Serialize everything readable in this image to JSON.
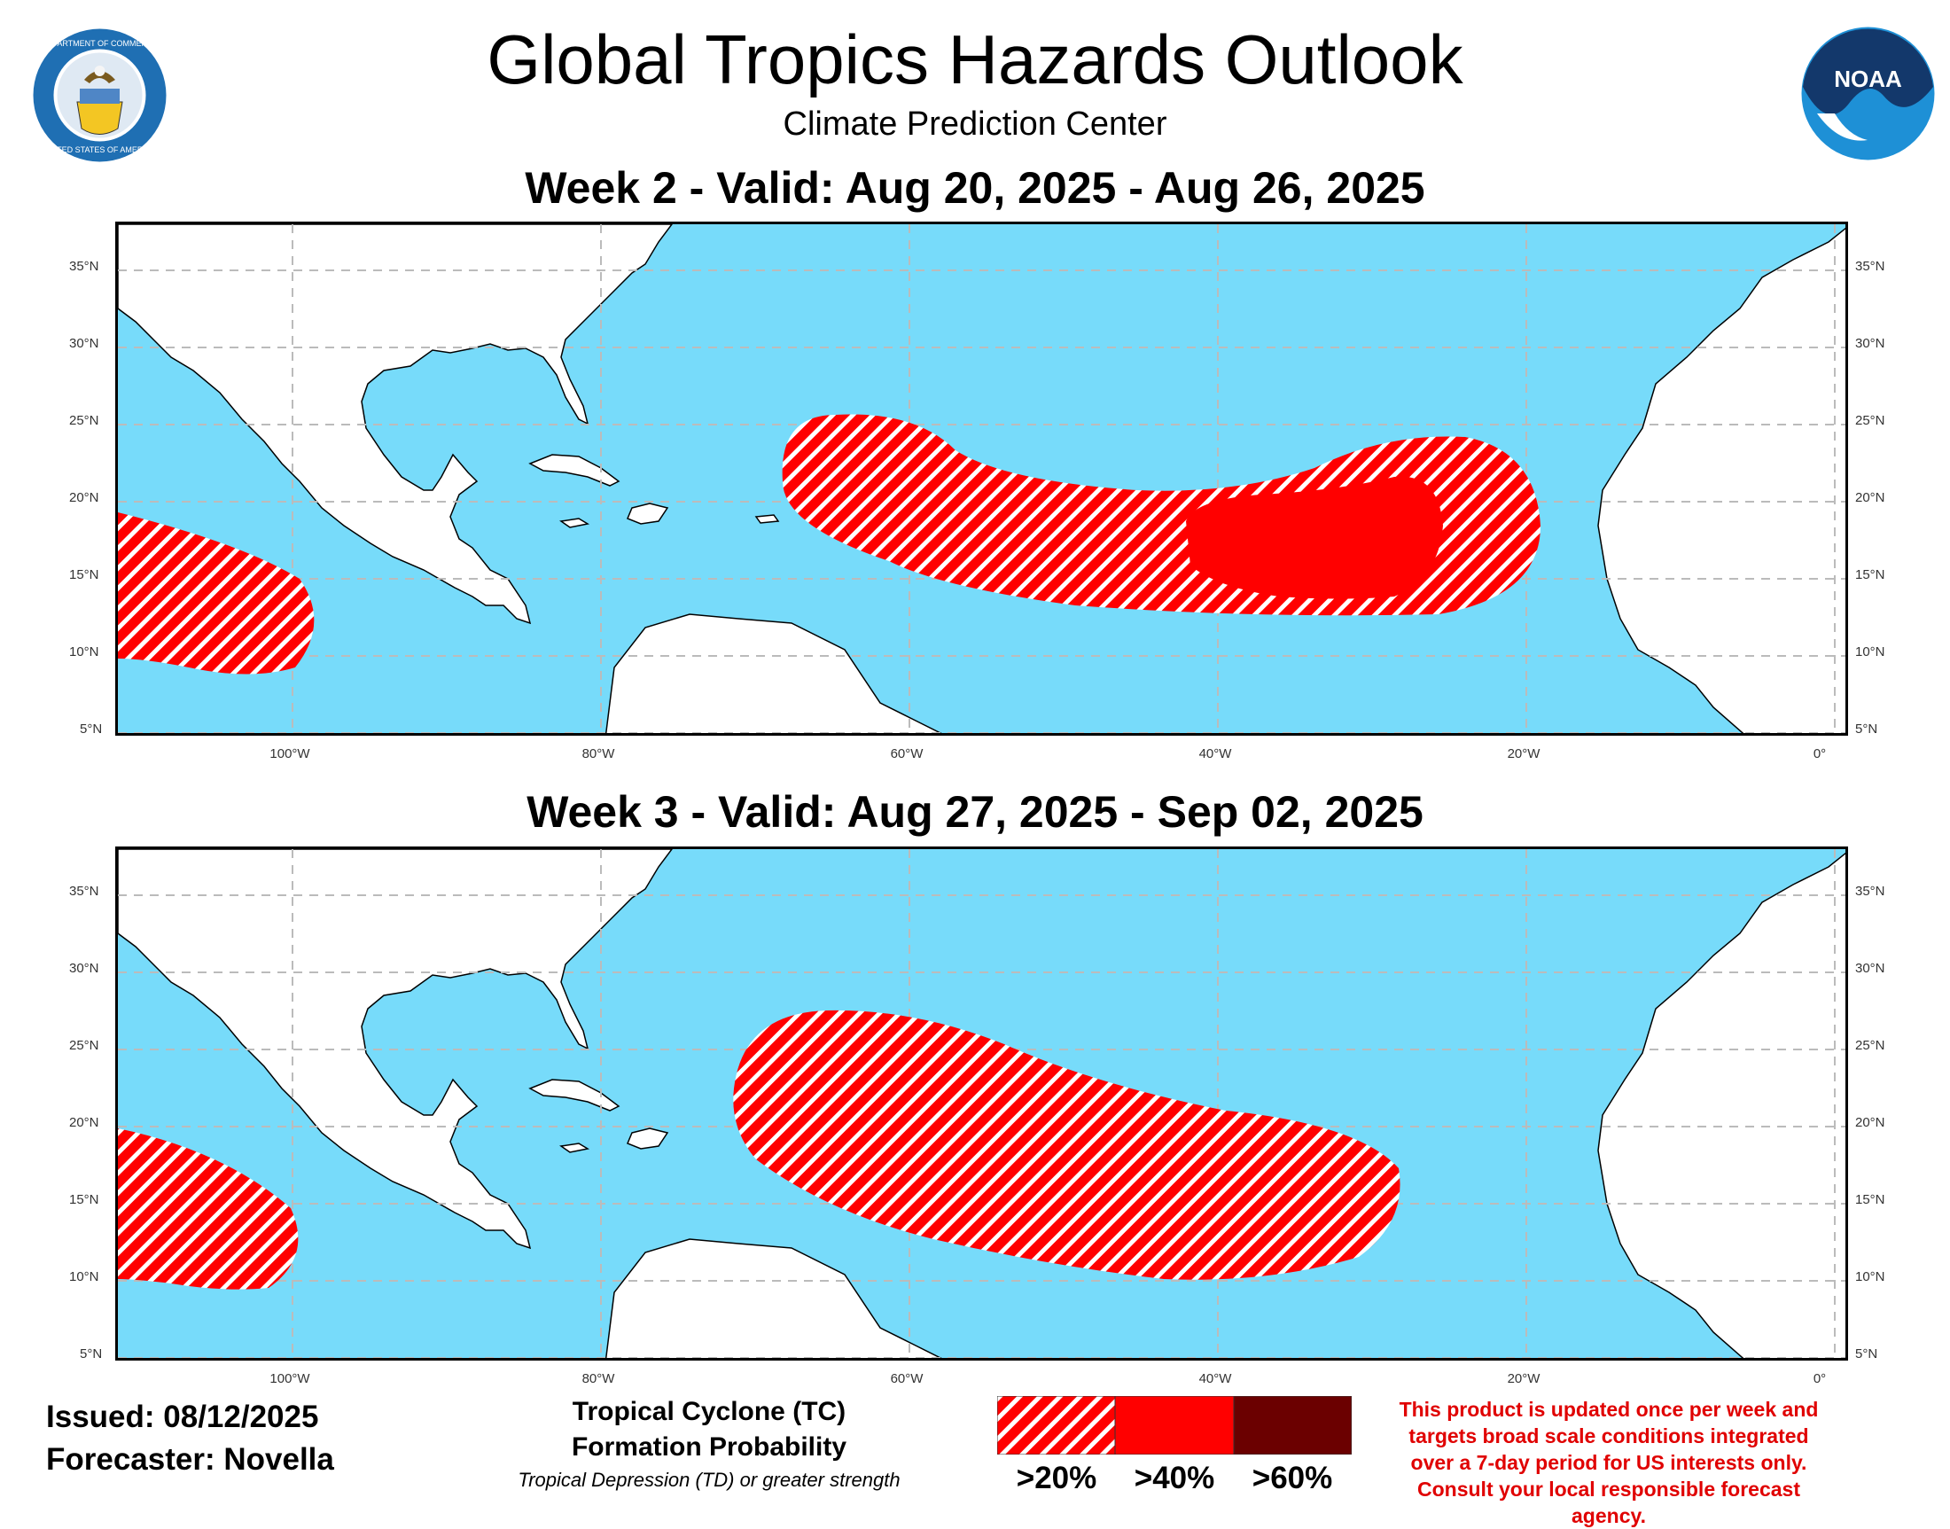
{
  "header": {
    "title": "Global Tropics Hazards Outlook",
    "subtitle": "Climate Prediction Center"
  },
  "logos": {
    "left": {
      "name": "department-of-commerce-seal",
      "text": "DEPARTMENT OF COMMERCE · UNITED STATES OF AMERICA"
    },
    "right": {
      "name": "noaa-logo",
      "text": "NOAA"
    }
  },
  "panels": [
    {
      "title": "Week 2 - Valid: Aug 20, 2025 - Aug 26, 2025"
    },
    {
      "title": "Week 3 - Valid: Aug 27, 2025 - Sep 02, 2025"
    }
  ],
  "axes": {
    "lat_labels": [
      "35°N",
      "30°N",
      "25°N",
      "20°N",
      "15°N",
      "10°N",
      "5°N"
    ],
    "lon_labels": [
      "100°W",
      "80°W",
      "60°W",
      "40°W",
      "20°W",
      "0°"
    ]
  },
  "footer": {
    "issued": "Issued: 08/12/2025",
    "forecaster": "Forecaster: Novella"
  },
  "legend": {
    "title_line1": "Tropical Cyclone (TC)",
    "title_line2": "Formation Probability",
    "subtitle": "Tropical Depression (TD) or greater strength",
    "categories": [
      {
        "label": ">20%",
        "color": "#ff0000",
        "style": "hatched"
      },
      {
        "label": ">40%",
        "color": "#ff0000",
        "style": "solid"
      },
      {
        "label": ">60%",
        "color": "#6b0000",
        "style": "solid"
      }
    ]
  },
  "disclaimer": "This product is updated once per week and targets broad scale conditions integrated over a 7-day period for US interests only. Consult your local responsible forecast agency.",
  "colors": {
    "ocean": "#77dbfa",
    "land": "#ffffff",
    "hazard_20": "#ff0000",
    "hazard_40": "#ff0000",
    "hazard_60": "#6b0000"
  }
}
